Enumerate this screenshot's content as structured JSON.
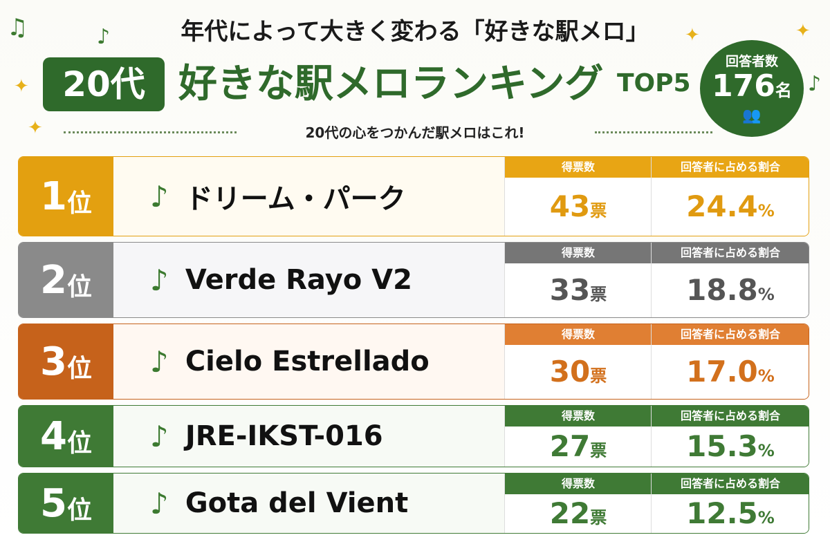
{
  "header": {
    "title": "年代によって大きく変わる「好きな駅メロ」",
    "age": "20代",
    "heading": "好きな駅メロランキング",
    "top": "TOP5",
    "respondents": {
      "label": "回答者数",
      "count": "176",
      "unit": "名"
    },
    "subtitle": "20代の心をつかんだ駅メロはこれ!"
  },
  "labels": {
    "rank_unit": "位",
    "votes_header": "得票数",
    "share_header": "回答者に占める割合",
    "vote_unit": "票",
    "percent": "%",
    "note": "♪"
  },
  "rows": [
    {
      "rank": "1",
      "name": "ドリーム・パーク",
      "votes": "43",
      "share": "24.4"
    },
    {
      "rank": "2",
      "name": "Verde Rayo V2",
      "votes": "33",
      "share": "18.8"
    },
    {
      "rank": "3",
      "name": "Cielo Estrellado",
      "votes": "30",
      "share": "17.0"
    },
    {
      "rank": "4",
      "name": "JRE-IKST-016",
      "votes": "27",
      "share": "15.3"
    },
    {
      "rank": "5",
      "name": "Gota del Vient",
      "votes": "22",
      "share": "12.5"
    }
  ]
}
